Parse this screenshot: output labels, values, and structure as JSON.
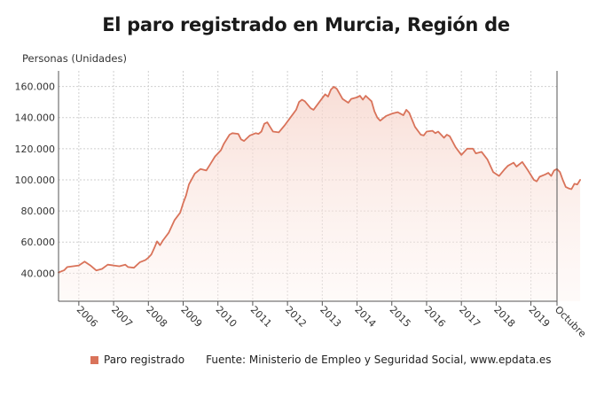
{
  "chart_data": {
    "type": "area",
    "title": "El paro registrado en Murcia, Región de",
    "ylabel": "Personas (Unidades)",
    "xlabel": "",
    "ylim": [
      22000,
      170000
    ],
    "yticks": [
      40000,
      60000,
      80000,
      100000,
      120000,
      140000,
      160000
    ],
    "ytick_labels": [
      "40.000",
      "60.000",
      "80.000",
      "100.000",
      "120.000",
      "140.000",
      "160.000"
    ],
    "xlim": [
      "2005-06",
      "2019-10"
    ],
    "xticks": [
      "2006-01",
      "2007-01",
      "2008-01",
      "2009-01",
      "2010-01",
      "2011-01",
      "2012-01",
      "2013-01",
      "2014-01",
      "2015-01",
      "2016-01",
      "2017-01",
      "2018-01",
      "2019-01",
      "2019-10"
    ],
    "xtick_labels": [
      "2006",
      "2007",
      "2008",
      "2009",
      "2010",
      "2011",
      "2012",
      "2013",
      "2014",
      "2015",
      "2016",
      "2017",
      "2018",
      "2019",
      "Octubre"
    ],
    "grid": true,
    "legend": "bottom",
    "color": "#d9735a",
    "series": [
      {
        "name": "Paro registrado",
        "points": [
          [
            "2005-06",
            40500
          ],
          [
            "2005-08",
            42000
          ],
          [
            "2005-09",
            44000
          ],
          [
            "2005-11",
            44500
          ],
          [
            "2006-01",
            45000
          ],
          [
            "2006-03",
            47500
          ],
          [
            "2006-05",
            45000
          ],
          [
            "2006-07",
            41800
          ],
          [
            "2006-09",
            42800
          ],
          [
            "2006-11",
            45500
          ],
          [
            "2007-01",
            45000
          ],
          [
            "2007-03",
            44500
          ],
          [
            "2007-05",
            45500
          ],
          [
            "2007-06",
            44000
          ],
          [
            "2007-08",
            43500
          ],
          [
            "2007-10",
            47000
          ],
          [
            "2007-12",
            48500
          ],
          [
            "2008-01",
            50000
          ],
          [
            "2008-02",
            52000
          ],
          [
            "2008-03",
            56000
          ],
          [
            "2008-04",
            60500
          ],
          [
            "2008-05",
            58000
          ],
          [
            "2008-06",
            61000
          ],
          [
            "2008-08",
            66000
          ],
          [
            "2008-10",
            74000
          ],
          [
            "2008-12",
            79000
          ],
          [
            "2009-01",
            85000
          ],
          [
            "2009-02",
            90000
          ],
          [
            "2009-03",
            97000
          ],
          [
            "2009-05",
            104000
          ],
          [
            "2009-07",
            107000
          ],
          [
            "2009-09",
            106000
          ],
          [
            "2009-10",
            109000
          ],
          [
            "2009-12",
            115000
          ],
          [
            "2010-02",
            119000
          ],
          [
            "2010-03",
            123000
          ],
          [
            "2010-05",
            129000
          ],
          [
            "2010-06",
            130000
          ],
          [
            "2010-08",
            129500
          ],
          [
            "2010-09",
            126000
          ],
          [
            "2010-10",
            125000
          ],
          [
            "2010-12",
            128500
          ],
          [
            "2011-02",
            130000
          ],
          [
            "2011-03",
            129500
          ],
          [
            "2011-04",
            131000
          ],
          [
            "2011-05",
            136000
          ],
          [
            "2011-06",
            137000
          ],
          [
            "2011-07",
            134000
          ],
          [
            "2011-08",
            131000
          ],
          [
            "2011-10",
            130500
          ],
          [
            "2011-12",
            135000
          ],
          [
            "2012-02",
            140000
          ],
          [
            "2012-04",
            145000
          ],
          [
            "2012-05",
            150000
          ],
          [
            "2012-06",
            151500
          ],
          [
            "2012-07",
            150500
          ],
          [
            "2012-09",
            146000
          ],
          [
            "2012-10",
            145000
          ],
          [
            "2012-12",
            150000
          ],
          [
            "2013-02",
            155000
          ],
          [
            "2013-03",
            153500
          ],
          [
            "2013-04",
            158000
          ],
          [
            "2013-05",
            159800
          ],
          [
            "2013-06",
            158500
          ],
          [
            "2013-08",
            152000
          ],
          [
            "2013-10",
            149500
          ],
          [
            "2013-11",
            152000
          ],
          [
            "2014-01",
            153000
          ],
          [
            "2014-02",
            154000
          ],
          [
            "2014-03",
            151500
          ],
          [
            "2014-04",
            154000
          ],
          [
            "2014-06",
            150500
          ],
          [
            "2014-07",
            144000
          ],
          [
            "2014-08",
            140000
          ],
          [
            "2014-09",
            138000
          ],
          [
            "2014-11",
            141000
          ],
          [
            "2015-01",
            142500
          ],
          [
            "2015-03",
            143500
          ],
          [
            "2015-05",
            141500
          ],
          [
            "2015-06",
            145000
          ],
          [
            "2015-07",
            143000
          ],
          [
            "2015-09",
            134000
          ],
          [
            "2015-11",
            129000
          ],
          [
            "2015-12",
            128500
          ],
          [
            "2016-01",
            131000
          ],
          [
            "2016-03",
            131500
          ],
          [
            "2016-04",
            130000
          ],
          [
            "2016-05",
            131000
          ],
          [
            "2016-07",
            127000
          ],
          [
            "2016-08",
            129000
          ],
          [
            "2016-09",
            128000
          ],
          [
            "2016-11",
            121000
          ],
          [
            "2017-01",
            116000
          ],
          [
            "2017-03",
            120000
          ],
          [
            "2017-05",
            120000
          ],
          [
            "2017-06",
            117000
          ],
          [
            "2017-08",
            118000
          ],
          [
            "2017-10",
            113000
          ],
          [
            "2017-12",
            105000
          ],
          [
            "2018-02",
            102500
          ],
          [
            "2018-04",
            107000
          ],
          [
            "2018-05",
            109000
          ],
          [
            "2018-07",
            111000
          ],
          [
            "2018-08",
            108500
          ],
          [
            "2018-10",
            111500
          ],
          [
            "2018-12",
            106000
          ],
          [
            "2019-02",
            100000
          ],
          [
            "2019-03",
            99000
          ],
          [
            "2019-04",
            102000
          ],
          [
            "2019-06",
            103500
          ],
          [
            "2019-07",
            104500
          ],
          [
            "2019-08",
            102500
          ],
          [
            "2019-09",
            106000
          ],
          [
            "2019-10",
            107000
          ],
          [
            "2019-11",
            105000
          ],
          [
            "2019-12",
            100000
          ],
          [
            "2020-01",
            95500
          ],
          [
            "2020-02",
            94500
          ],
          [
            "2020-03",
            94000
          ],
          [
            "2020-04",
            97500
          ],
          [
            "2020-05",
            97000
          ],
          [
            "2020-06",
            100000
          ]
        ]
      }
    ]
  },
  "legend": {
    "label": "Paro registrado",
    "source": "Fuente: Ministerio de Empleo y Seguridad Social, www.epdata.es"
  }
}
